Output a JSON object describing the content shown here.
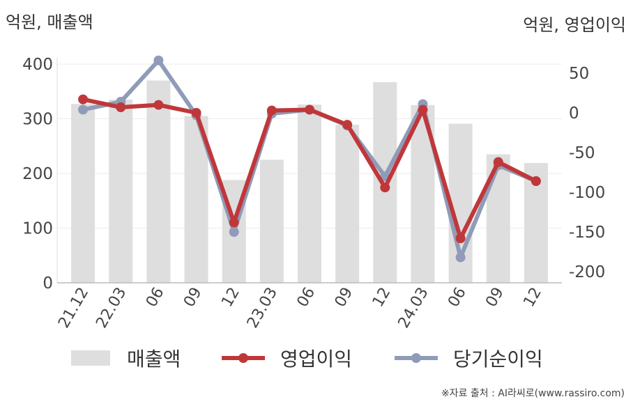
{
  "chart_data": {
    "type": "bar+line",
    "left_axis_label": "억원, 매출액",
    "right_axis_label": "억원, 영업이익",
    "categories": [
      "21.12",
      "22.03",
      "06",
      "09",
      "12",
      "23.03",
      "06",
      "09",
      "12",
      "24.03",
      "06",
      "09",
      "12"
    ],
    "bar_series": {
      "name": "매출액",
      "axis": "left",
      "color": "#dedede",
      "values": [
        327,
        335,
        370,
        305,
        188,
        225,
        326,
        289,
        367,
        325,
        291,
        235,
        219
      ]
    },
    "line_series": [
      {
        "name": "영업이익",
        "axis": "right",
        "color": "#c0373a",
        "values": [
          17,
          7,
          10,
          0,
          -138,
          3,
          4,
          -15,
          -94,
          4,
          -158,
          -62,
          -86
        ]
      },
      {
        "name": "당기순이익",
        "axis": "right",
        "color": "#8f9bb8",
        "values": [
          4,
          14,
          66,
          -3,
          -150,
          -1,
          4,
          -16,
          -80,
          11,
          -182,
          -66,
          -86
        ]
      }
    ],
    "left_ylim": [
      0,
      400
    ],
    "left_ticks": [
      "0",
      "100",
      "200",
      "300",
      "400"
    ],
    "right_ylim": [
      -210,
      80
    ],
    "right_ticks": [
      "50",
      "0",
      "-50",
      "-100",
      "-150",
      "-200"
    ],
    "grid": true,
    "legend_position": "bottom"
  },
  "source": "※자료 출처 : AI라씨로(www.rassiro.com)"
}
